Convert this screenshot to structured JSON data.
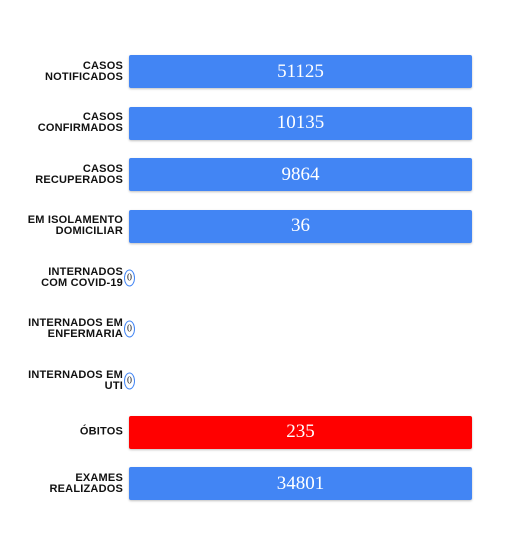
{
  "rows": [
    {
      "label": [
        "CASOS",
        "NOTIFICADOS"
      ],
      "value": 51125,
      "color": "#4285f4"
    },
    {
      "label": [
        "CASOS",
        "CONFIRMADOS"
      ],
      "value": 10135,
      "color": "#4285f4"
    },
    {
      "label": [
        "CASOS",
        "RECUPERADOS"
      ],
      "value": 9864,
      "color": "#4285f4"
    },
    {
      "label": [
        "EM ISOLAMENTO",
        "DOMICILIAR"
      ],
      "value": 36,
      "color": "#4285f4"
    },
    {
      "label": [
        "INTERNADOS",
        "COM COVID-19"
      ],
      "value": 0,
      "color": "#4285f4"
    },
    {
      "label": [
        "INTERNADOS EM",
        "ENFERMARIA"
      ],
      "value": 0,
      "color": "#4285f4"
    },
    {
      "label": [
        "INTERNADOS EM",
        "UTI"
      ],
      "value": 0,
      "color": "#4285f4"
    },
    {
      "label": [
        "ÓBITOS"
      ],
      "value": 235,
      "color": "#ff0000"
    },
    {
      "label": [
        "EXAMES",
        "REALIZADOS"
      ],
      "value": 34801,
      "color": "#4285f4"
    }
  ]
}
